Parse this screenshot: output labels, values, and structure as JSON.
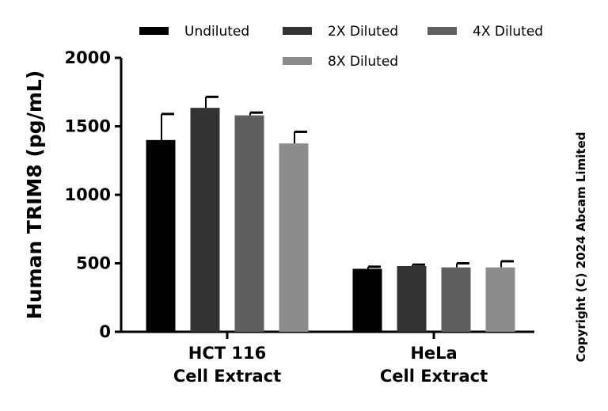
{
  "chart_data": {
    "type": "bar",
    "categories": [
      [
        "HCT 116",
        "Cell Extract"
      ],
      [
        "HeLa",
        "Cell Extract"
      ]
    ],
    "series": [
      {
        "name": "Undiluted",
        "color": "#000000",
        "values": [
          1400,
          460
        ],
        "errors": [
          190,
          15
        ]
      },
      {
        "name": "2X Diluted",
        "color": "#333333",
        "values": [
          1635,
          480
        ],
        "errors": [
          80,
          10
        ]
      },
      {
        "name": "4X Diluted",
        "color": "#5f5f5f",
        "values": [
          1580,
          470
        ],
        "errors": [
          20,
          30
        ]
      },
      {
        "name": "8X Diluted",
        "color": "#8c8c8c",
        "values": [
          1375,
          470
        ],
        "errors": [
          85,
          45
        ]
      }
    ],
    "ylabel": "Human TRIM8 (pg/mL)",
    "xlabel": "",
    "ylim": [
      0,
      2000
    ],
    "yticks": [
      0,
      500,
      1000,
      1500,
      2000
    ],
    "grid": false,
    "legend": "top"
  },
  "copyright": "Copyright (C) 2024 Abcam Limited"
}
